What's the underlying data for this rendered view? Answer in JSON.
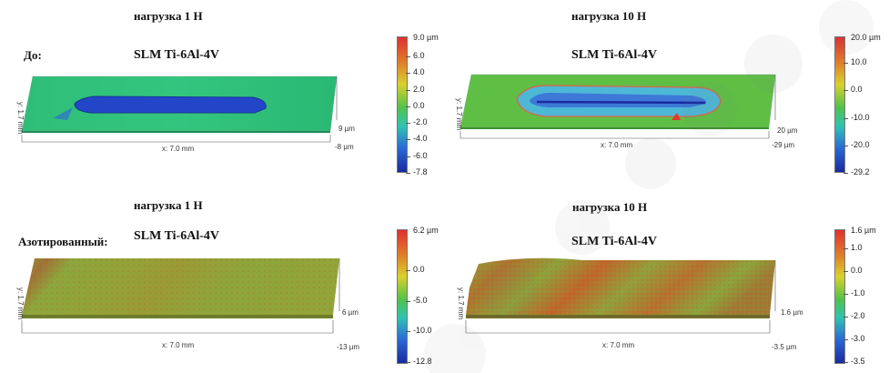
{
  "rows": [
    {
      "label": "До:"
    },
    {
      "label": "Азотированный:"
    }
  ],
  "panels": [
    {
      "load": "нагрузка 1 Н",
      "material": "SLM Ti-6Al-4V",
      "y_axis": "y: 1.7 mm",
      "x_axis": "x: 7.0 mm",
      "z_top": "9 µm",
      "z_bottom": "-8 µm",
      "scale_unit": "9.0 µm",
      "scale_ticks": [
        "6.0",
        "4.0",
        "2.0",
        "0.0",
        "-2.0",
        "-4.0",
        "-6.0",
        "-7.8"
      ]
    },
    {
      "load": "нагрузка 10 Н",
      "material": "SLM Ti-6Al-4V",
      "y_axis": "y: 1.7 mm",
      "x_axis": "x: 7.0 mm",
      "z_top": "20 µm",
      "z_bottom": "-29 µm",
      "scale_unit": "20.0 µm",
      "scale_ticks": [
        "10.0",
        "0.0",
        "-10.0",
        "-20.0",
        "-29.2"
      ]
    },
    {
      "load": "нагрузка 1 Н",
      "material": "SLM Ti-6Al-4V",
      "y_axis": "y: 1.7 mm",
      "x_axis": "x: 7.0 mm",
      "z_top": "6 µm",
      "z_bottom": "-13 µm",
      "scale_unit": "6.2 µm",
      "scale_ticks": [
        "0.0",
        "-5.0",
        "-10.0",
        "-12.8"
      ]
    },
    {
      "load": "нагрузка 10 Н",
      "material": "SLM Ti-6Al-4V",
      "y_axis": "y: 1.7 mm",
      "x_axis": "x: 7.0 mm",
      "z_top": "1.6 µm",
      "z_bottom": "-3.5 µm",
      "scale_unit": "1.6 µm",
      "scale_ticks": [
        "1.0",
        "0.0",
        "-1.0",
        "-2.0",
        "-3.0",
        "-3.5"
      ]
    }
  ],
  "colors": {
    "before_surface": "#2ec37a",
    "track_blue": "#1f3fc4",
    "nitrided_surface": "#8da33a",
    "nitrided_band": "#c7662a"
  },
  "watermark_icon": "preprint-watermark"
}
